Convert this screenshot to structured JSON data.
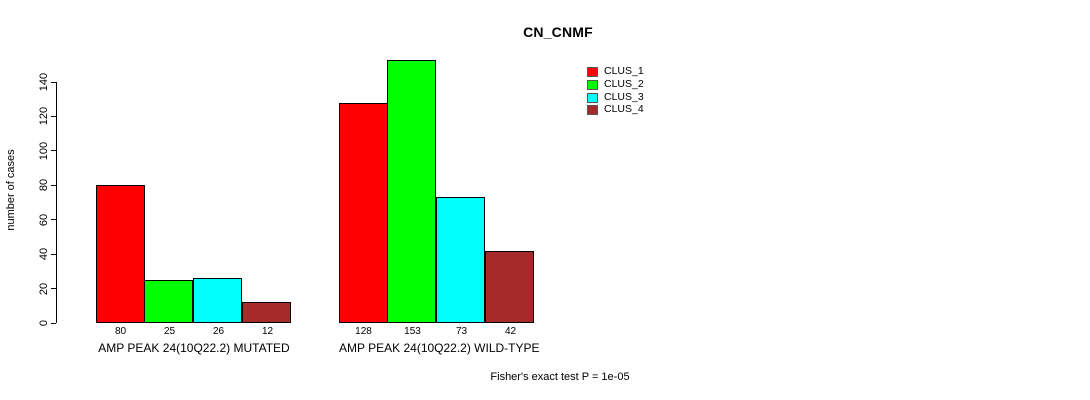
{
  "title": "CN_CNMF",
  "chart_data": {
    "type": "bar",
    "title": "CN_CNMF",
    "xlabel": "",
    "ylabel": "number of cases",
    "ylim": [
      0,
      160
    ],
    "yticks": [
      0,
      20,
      40,
      60,
      80,
      100,
      120,
      140
    ],
    "grid": false,
    "legend_position": "top-right",
    "legend": [
      {
        "name": "CLUS_1",
        "color": "#FF0000"
      },
      {
        "name": "CLUS_2",
        "color": "#00FF00"
      },
      {
        "name": "CLUS_3",
        "color": "#00FFFF"
      },
      {
        "name": "CLUS_4",
        "color": "#A52A2A"
      }
    ],
    "groups": [
      {
        "label": "AMP PEAK 24(10Q22.2) MUTATED",
        "series": [
          "CLUS_1",
          "CLUS_2",
          "CLUS_3",
          "CLUS_4"
        ],
        "values": [
          80,
          25,
          26,
          12
        ]
      },
      {
        "label": "AMP PEAK 24(10Q22.2) WILD-TYPE",
        "series": [
          "CLUS_1",
          "CLUS_2",
          "CLUS_3",
          "CLUS_4"
        ],
        "values": [
          128,
          153,
          73,
          42
        ]
      }
    ],
    "annotation": "Fisher's exact test P = 1e-05",
    "colors": {
      "bar_border": "#000000",
      "axis": "#000000",
      "text": "#000000",
      "background": "#FFFFFF"
    }
  }
}
